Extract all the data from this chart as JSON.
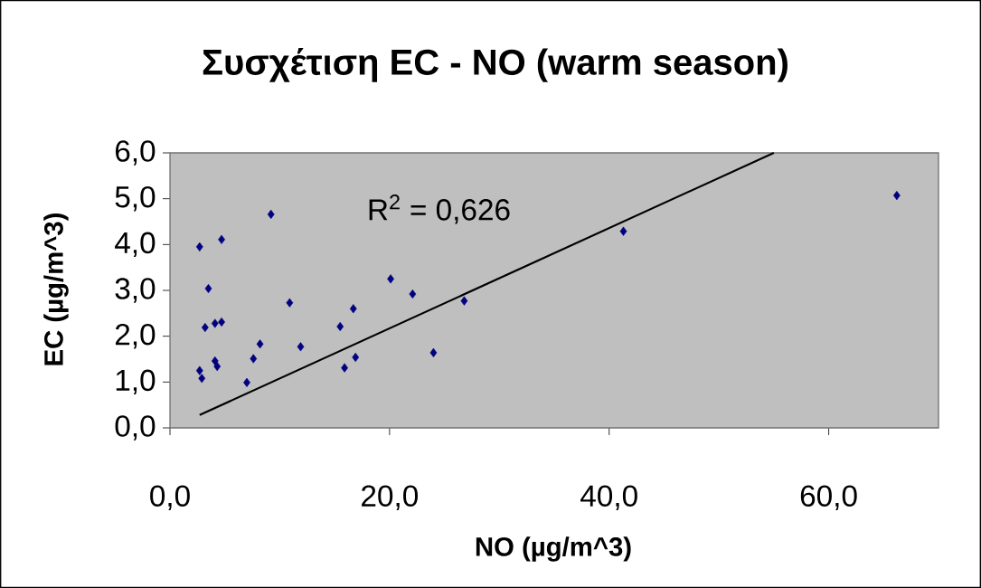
{
  "chart_data": {
    "type": "scatter",
    "title": "Συσχέτιση EC - NO (warm season)",
    "xlabel": "NO (µg/m^3)",
    "ylabel": "EC (µg/m^3)",
    "annotations": [
      "R$^{2}$ = 0,626"
    ],
    "series": [
      {
        "color": "#000080",
        "marker": "diamond",
        "x": [
          2.7,
          4.7,
          9.2,
          3.5,
          3.2,
          4.1,
          4.7,
          10.9,
          8.2,
          7.6,
          4.1,
          4.3,
          2.7,
          2.9,
          7.0,
          11.9,
          15.5,
          16.7,
          15.9,
          16.9,
          20.1,
          22.1,
          24.0,
          26.8,
          41.3,
          66.2
        ],
        "values": [
          3.95,
          4.11,
          4.66,
          3.04,
          2.19,
          2.28,
          2.31,
          2.73,
          1.83,
          1.51,
          1.46,
          1.34,
          1.25,
          1.08,
          0.99,
          1.77,
          2.21,
          2.6,
          1.31,
          1.54,
          3.25,
          2.92,
          1.64,
          2.77,
          4.29,
          5.07
        ]
      },
      {
        "type": "line",
        "color": "#000000",
        "marker": "none",
        "x": [
          2.7,
          55.0
        ],
        "values": [
          0.28,
          6.0
        ]
      }
    ],
    "xlim": [
      0,
      70
    ],
    "ylim": [
      0,
      6
    ],
    "xticks": [
      {
        "value": 0,
        "label": "0,0"
      },
      {
        "value": 20,
        "label": "20,0"
      },
      {
        "value": 40,
        "label": "40,0"
      },
      {
        "value": 60,
        "label": "60,0"
      }
    ],
    "yticks": [
      {
        "value": 0,
        "label": "0,0"
      },
      {
        "value": 1,
        "label": "1,0"
      },
      {
        "value": 2,
        "label": "2,0"
      },
      {
        "value": 3,
        "label": "3,0"
      },
      {
        "value": 4,
        "label": "4,0"
      },
      {
        "value": 5,
        "label": "5,0"
      },
      {
        "value": 6,
        "label": "6,0"
      }
    ]
  }
}
